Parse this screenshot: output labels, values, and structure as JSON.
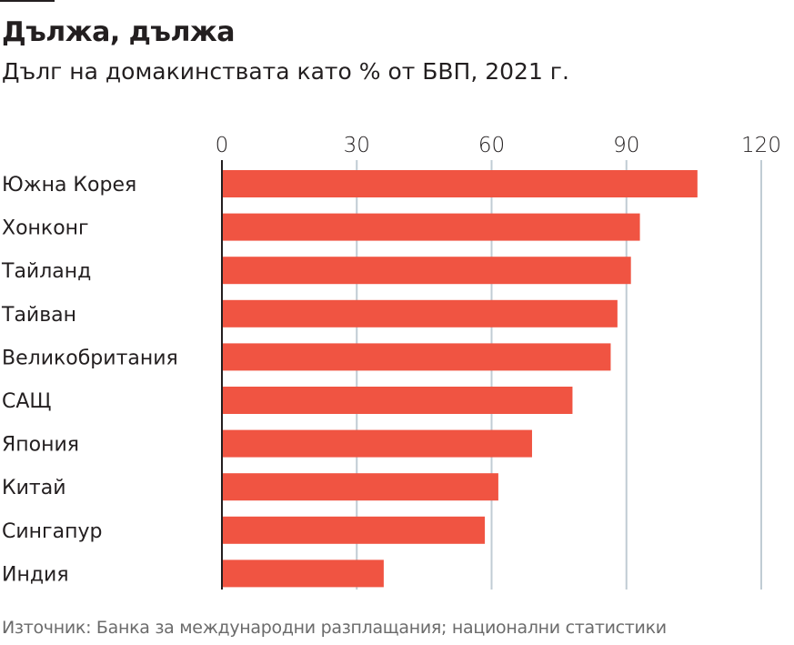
{
  "header": {
    "title": "Дължа, дължа",
    "subtitle": "Дълг на домакинствата като % от БВП, 2021 г."
  },
  "footer": {
    "source": "Източник: Банка за международни разплащания; национални статистики"
  },
  "colors": {
    "bar": "#f05442",
    "grid": "#c0ccd4",
    "axis": "#231f20",
    "text": "#231f20",
    "source_text": "#6b6b6b"
  },
  "chart_data": {
    "type": "bar",
    "orientation": "horizontal",
    "title": "Дължа, дължа",
    "subtitle": "Дълг на домакинствата като % от БВП, 2021 г.",
    "xlabel": "",
    "ylabel": "",
    "categories": [
      "Южна Корея",
      "Хонконг",
      "Тайланд",
      "Тайван",
      "Великобритания",
      "САЩ",
      "Япония",
      "Китай",
      "Сингапур",
      "Индия"
    ],
    "values": [
      105.8,
      93.0,
      91.0,
      88.0,
      86.5,
      78.0,
      69.0,
      61.5,
      58.5,
      36.0
    ],
    "xlim": [
      0,
      120
    ],
    "xticks": [
      0,
      30,
      60,
      90,
      120
    ],
    "xtick_labels": [
      "0",
      "30",
      "60",
      "90",
      "120"
    ],
    "xaxis_position": "top",
    "grid": true,
    "legend": "none",
    "source": "Източник: Банка за международни разплащания; национални статистики"
  }
}
